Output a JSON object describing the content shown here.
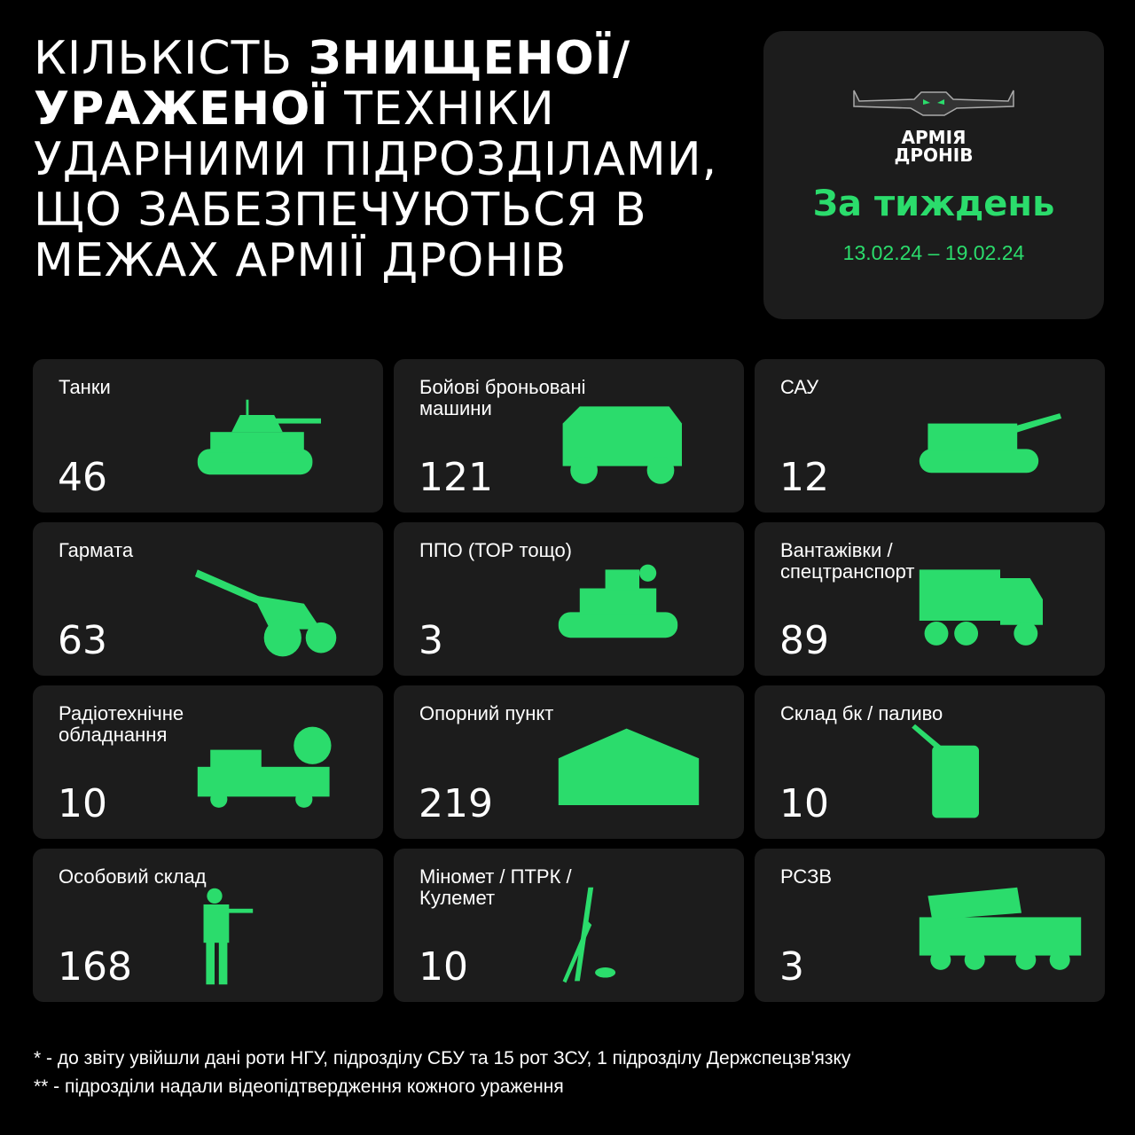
{
  "title": {
    "part1": "Кількість ",
    "bold1": "знищеної/ уражено",
    "bold1b": "ї",
    "part2": " техніки ударними підрозділами, що забезпечуються в межах Армії Дронів"
  },
  "badge": {
    "logo_line1": "АРМІЯ",
    "logo_line2": "ДРОНІВ",
    "period": "За тиждень",
    "dates": "13.02.24 – 19.02.24"
  },
  "accent": "#2bdc6c",
  "cards": [
    {
      "label": "Танки",
      "value": "46",
      "icon": "tank-icon"
    },
    {
      "label": "Бойові броньовані машини",
      "value": "121",
      "icon": "armored-vehicle-icon"
    },
    {
      "label": "САУ",
      "value": "12",
      "icon": "self-propelled-artillery-icon"
    },
    {
      "label": "Гармата",
      "value": "63",
      "icon": "cannon-icon"
    },
    {
      "label": "ППО (ТОР тощо)",
      "value": "3",
      "icon": "air-defense-icon"
    },
    {
      "label": "Вантажівки / спецтранспорт",
      "value": "89",
      "icon": "truck-icon"
    },
    {
      "label": "Радіотехнічне обладнання",
      "value": "10",
      "icon": "radar-icon"
    },
    {
      "label": "Опорний пункт",
      "value": "219",
      "icon": "tent-icon"
    },
    {
      "label": "Склад бк / паливо",
      "value": "10",
      "icon": "jerrycan-icon"
    },
    {
      "label": "Особовий склад",
      "value": "168",
      "icon": "soldier-icon"
    },
    {
      "label": "Міномет / ПТРК /Кулемет",
      "value": "10",
      "icon": "mortar-icon"
    },
    {
      "label": "РСЗВ",
      "value": "3",
      "icon": "mlrs-icon"
    }
  ],
  "footnotes": [
    "* - до звіту увійшли дані роти НГУ, підрозділу СБУ та 15 рот ЗСУ, 1 підрозділу Держспецзв'язку",
    "** - підрозділи надали відеопідтвердження кожного ураження"
  ]
}
